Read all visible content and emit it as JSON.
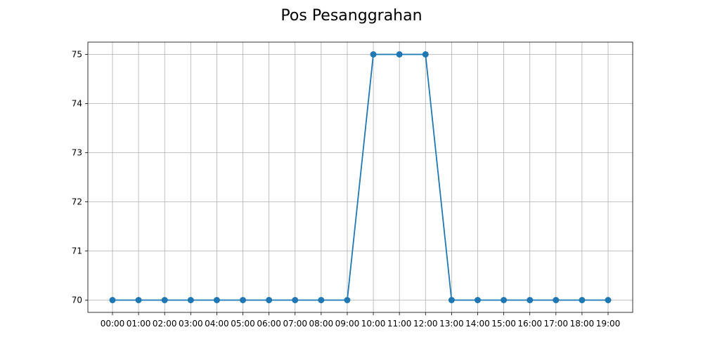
{
  "chart_data": {
    "type": "line",
    "title": "Pos Pesanggrahan",
    "xlabel": "",
    "ylabel": "",
    "categories": [
      "00:00",
      "01:00",
      "02:00",
      "03:00",
      "04:00",
      "05:00",
      "06:00",
      "07:00",
      "08:00",
      "09:00",
      "10:00",
      "11:00",
      "12:00",
      "13:00",
      "14:00",
      "15:00",
      "16:00",
      "17:00",
      "18:00",
      "19:00"
    ],
    "series": [
      {
        "values": [
          70,
          70,
          70,
          70,
          70,
          70,
          70,
          70,
          70,
          70,
          75,
          75,
          75,
          70,
          70,
          70,
          70,
          70,
          70,
          70
        ],
        "color": "#1f77b4",
        "marker": "circle"
      }
    ],
    "yticks": [
      70,
      71,
      72,
      73,
      74,
      75
    ],
    "ylim": [
      69.75,
      75.25
    ],
    "grid": true,
    "legend": "none"
  }
}
